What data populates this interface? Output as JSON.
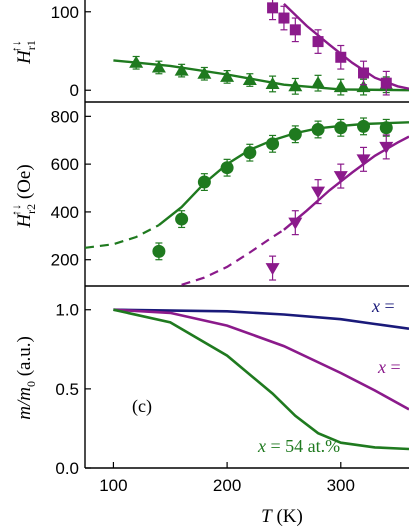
{
  "chart_data": [
    {
      "panel": "top",
      "type": "scatter",
      "ylabel": "H_r1^↑↓",
      "yticks": [
        0,
        100
      ],
      "ylim": [
        -15,
        115
      ],
      "xlim": [
        75,
        360
      ],
      "series": [
        {
          "color": "#1f7a1f",
          "marker": "triangle-up",
          "points": [
            [
              120,
              35
            ],
            [
              140,
              29
            ],
            [
              160,
              25
            ],
            [
              180,
              21
            ],
            [
              200,
              17
            ],
            [
              220,
              13
            ],
            [
              240,
              8
            ],
            [
              260,
              5
            ],
            [
              280,
              9
            ],
            [
              300,
              4
            ],
            [
              320,
              4
            ],
            [
              340,
              7
            ]
          ],
          "errors": [
            8,
            8,
            8,
            8,
            8,
            8,
            10,
            10,
            10,
            10,
            10,
            10
          ],
          "fit": [
            [
              100,
              38
            ],
            [
              150,
              31
            ],
            [
              200,
              20
            ],
            [
              250,
              7
            ],
            [
              300,
              1
            ],
            [
              360,
              0
            ]
          ]
        },
        {
          "color": "#8b1a8b",
          "marker": "square",
          "points": [
            [
              240,
              105
            ],
            [
              250,
              92
            ],
            [
              260,
              77
            ],
            [
              280,
              62
            ],
            [
              300,
              42
            ],
            [
              320,
              22
            ],
            [
              340,
              9
            ]
          ],
          "errors": [
            15,
            15,
            15,
            15,
            15,
            15,
            15
          ],
          "fit": [
            [
              250,
              110
            ],
            [
              270,
              82
            ],
            [
              290,
              58
            ],
            [
              310,
              35
            ],
            [
              330,
              16
            ],
            [
              350,
              5
            ],
            [
              360,
              2
            ]
          ]
        }
      ]
    },
    {
      "panel": "middle",
      "type": "scatter",
      "ylabel": "H_r2^↑↓ (Oe)",
      "yticks": [
        200,
        400,
        600,
        800
      ],
      "ylim": [
        90,
        860
      ],
      "xlim": [
        75,
        360
      ],
      "series": [
        {
          "color": "#1f7a1f",
          "marker": "circle",
          "points": [
            [
              140,
              235
            ],
            [
              160,
              370
            ],
            [
              180,
              525
            ],
            [
              200,
              585
            ],
            [
              220,
              648
            ],
            [
              240,
              685
            ],
            [
              260,
              725
            ],
            [
              280,
              745
            ],
            [
              300,
              752
            ],
            [
              320,
              758
            ],
            [
              340,
              752
            ]
          ],
          "errors": [
            35,
            35,
            35,
            35,
            35,
            35,
            35,
            35,
            35,
            35,
            35
          ],
          "fit_dashed": [
            [
              75,
              250
            ],
            [
              100,
              265
            ],
            [
              120,
              295
            ],
            [
              140,
              345
            ]
          ],
          "fit_solid": [
            [
              140,
              345
            ],
            [
              160,
              420
            ],
            [
              180,
              520
            ],
            [
              200,
              600
            ],
            [
              220,
              660
            ],
            [
              240,
              700
            ],
            [
              260,
              730
            ],
            [
              280,
              750
            ],
            [
              300,
              760
            ],
            [
              320,
              768
            ],
            [
              360,
              775
            ]
          ]
        },
        {
          "color": "#8b1a8b",
          "marker": "triangle-down",
          "points": [
            [
              240,
              165
            ],
            [
              260,
              355
            ],
            [
              280,
              485
            ],
            [
              300,
              550
            ],
            [
              320,
              620
            ],
            [
              340,
              672
            ]
          ],
          "errors": [
            50,
            50,
            50,
            50,
            50,
            50
          ],
          "fit_dashed": [
            [
              160,
              95
            ],
            [
              180,
              125
            ],
            [
              200,
              170
            ],
            [
              220,
              230
            ],
            [
              240,
              295
            ],
            [
              250,
              325
            ]
          ],
          "fit_solid": [
            [
              250,
              325
            ],
            [
              270,
              405
            ],
            [
              290,
              490
            ],
            [
              310,
              565
            ],
            [
              330,
              635
            ],
            [
              350,
              690
            ],
            [
              360,
              715
            ]
          ]
        }
      ]
    },
    {
      "panel": "bottom",
      "type": "line",
      "title": "(c)",
      "ylabel": "m/m0 (a.u.)",
      "xlabel": "T (K)",
      "xticks": [
        100,
        200,
        300
      ],
      "yticks": [
        0.0,
        0.5,
        1.0
      ],
      "ylim": [
        0,
        1.15
      ],
      "xlim": [
        75,
        360
      ],
      "series": [
        {
          "name": "x = ",
          "color": "#1a1a7a",
          "points": [
            [
              100,
              1.0
            ],
            [
              200,
              0.99
            ],
            [
              250,
              0.97
            ],
            [
              300,
              0.94
            ],
            [
              330,
              0.91
            ],
            [
              360,
              0.88
            ]
          ]
        },
        {
          "name": "x = ",
          "color": "#8b1a8b",
          "points": [
            [
              100,
              1.0
            ],
            [
              150,
              0.98
            ],
            [
              200,
              0.9
            ],
            [
              250,
              0.77
            ],
            [
              300,
              0.6
            ],
            [
              330,
              0.49
            ],
            [
              360,
              0.37
            ]
          ]
        },
        {
          "name": "x = 54 at.%",
          "color": "#1f7a1f",
          "points": [
            [
              100,
              1.0
            ],
            [
              150,
              0.92
            ],
            [
              200,
              0.71
            ],
            [
              240,
              0.47
            ],
            [
              260,
              0.33
            ],
            [
              280,
              0.22
            ],
            [
              300,
              0.16
            ],
            [
              330,
              0.13
            ],
            [
              360,
              0.12
            ]
          ]
        }
      ]
    }
  ],
  "labels": {
    "top_ylabel_main": "H",
    "top_ylabel_sup": "↑↓",
    "top_ylabel_sub": "r1",
    "mid_ylabel_main": "H",
    "mid_ylabel_sup": "↑↓",
    "mid_ylabel_sub": "r2",
    "mid_ylabel_unit": " (Oe)",
    "bot_ylabel_main": "m/m",
    "bot_ylabel_sub": "0",
    "bot_ylabel_unit": " (a.u.)",
    "xlabel_var": "T",
    "xlabel_unit": " (K)",
    "panel_label": "(c)",
    "series_x_var": "x",
    "series_eq": " = ",
    "series_value_green": "54 at.%"
  }
}
